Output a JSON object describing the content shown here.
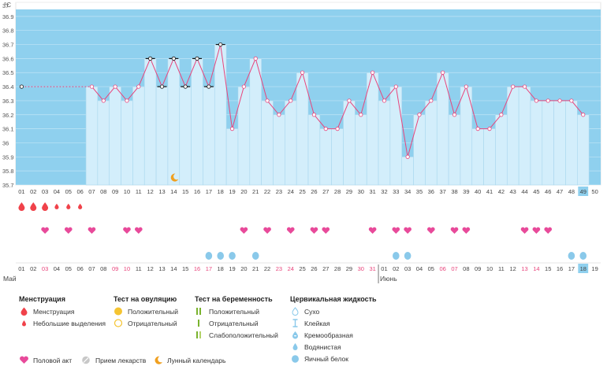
{
  "chart_data": {
    "type": "line",
    "unit_label": "°C",
    "y_ticks": [
      "37",
      "36.9",
      "36.8",
      "36.7",
      "36.6",
      "36.5",
      "36.4",
      "36.3",
      "36.2",
      "36.1",
      "36",
      "35.9",
      "35.8",
      "35.7"
    ],
    "ylim": [
      35.7,
      37.0
    ],
    "cycle_days": [
      "01",
      "02",
      "03",
      "04",
      "05",
      "06",
      "07",
      "08",
      "09",
      "10",
      "11",
      "12",
      "13",
      "14",
      "15",
      "16",
      "17",
      "18",
      "19",
      "20",
      "21",
      "22",
      "23",
      "24",
      "25",
      "26",
      "27",
      "28",
      "29",
      "30",
      "31",
      "32",
      "33",
      "34",
      "35",
      "36",
      "37",
      "38",
      "39",
      "40",
      "41",
      "42",
      "43",
      "44",
      "45",
      "46",
      "47",
      "48",
      "49",
      "50"
    ],
    "current_cycle_day": "49",
    "temperatures": [
      36.4,
      null,
      null,
      null,
      null,
      null,
      36.4,
      36.3,
      36.4,
      36.3,
      36.4,
      36.6,
      36.4,
      36.6,
      36.4,
      36.6,
      36.4,
      36.7,
      36.1,
      36.4,
      36.6,
      36.3,
      36.2,
      36.3,
      36.5,
      36.2,
      36.1,
      36.1,
      36.3,
      36.2,
      36.5,
      36.3,
      36.4,
      35.9,
      36.2,
      36.3,
      36.5,
      36.2,
      36.4,
      36.1,
      36.1,
      36.2,
      36.4,
      36.4,
      36.3,
      36.3,
      36.3,
      36.3,
      36.2,
      null
    ],
    "temperature_marker_style": [
      "plain",
      "none",
      "none",
      "none",
      "none",
      "none",
      "plain",
      "plain",
      "plain",
      "plain",
      "plain",
      "bar",
      "bar",
      "bar",
      "bar",
      "bar",
      "bar",
      "bar",
      "plain",
      "plain",
      "plain",
      "plain",
      "plain",
      "plain",
      "plain",
      "plain",
      "plain",
      "plain",
      "plain",
      "plain",
      "plain",
      "plain",
      "plain",
      "plain",
      "plain",
      "plain",
      "plain",
      "plain",
      "plain",
      "plain",
      "plain",
      "plain",
      "plain",
      "plain",
      "plain",
      "plain",
      "plain",
      "plain",
      "plain",
      "none"
    ],
    "lunar_calendar_day_index": 13,
    "menstruation": [
      "heavy",
      "heavy",
      "heavy",
      "light",
      "light",
      "light",
      "",
      "",
      "",
      "",
      "",
      "",
      "",
      "",
      "",
      "",
      "",
      "",
      "",
      "",
      "",
      "",
      "",
      "",
      "",
      "",
      "",
      "",
      "",
      "",
      "",
      "",
      "",
      "",
      "",
      "",
      "",
      "",
      "",
      "",
      "",
      "",
      "",
      "",
      "",
      "",
      "",
      "",
      "",
      ""
    ],
    "intercourse": [
      0,
      0,
      1,
      0,
      1,
      0,
      1,
      0,
      0,
      1,
      1,
      0,
      0,
      0,
      0,
      0,
      0,
      0,
      0,
      1,
      0,
      1,
      0,
      1,
      0,
      1,
      1,
      0,
      0,
      0,
      1,
      0,
      1,
      1,
      0,
      1,
      0,
      1,
      1,
      0,
      0,
      0,
      0,
      1,
      1,
      1,
      0,
      0,
      0,
      0
    ],
    "cervical_fluid": [
      "",
      "",
      "",
      "",
      "",
      "",
      "",
      "",
      "",
      "",
      "",
      "",
      "",
      "",
      "",
      "",
      "egg_white",
      "egg_white",
      "egg_white",
      "",
      "egg_white",
      "",
      "",
      "",
      "",
      "",
      "",
      "",
      "",
      "",
      "",
      "",
      "egg_white",
      "egg_white",
      "",
      "",
      "",
      "",
      "",
      "",
      "",
      "",
      "",
      "",
      "",
      "",
      "",
      "egg_white",
      "egg_white",
      ""
    ],
    "calendar_dates": [
      "01",
      "02",
      "03",
      "04",
      "05",
      "06",
      "07",
      "08",
      "09",
      "10",
      "11",
      "12",
      "13",
      "14",
      "15",
      "16",
      "17",
      "18",
      "19",
      "20",
      "21",
      "22",
      "23",
      "24",
      "25",
      "26",
      "27",
      "28",
      "29",
      "30",
      "31",
      "01",
      "02",
      "03",
      "04",
      "05",
      "06",
      "07",
      "08",
      "09",
      "10",
      "11",
      "12",
      "13",
      "14",
      "15",
      "16",
      "17",
      "18",
      "19"
    ],
    "weekend_date_indices": [
      2,
      8,
      9,
      15,
      16,
      22,
      23,
      29,
      30,
      36,
      37,
      43,
      44
    ],
    "today_date_index": 48,
    "month_labels": [
      {
        "index": 0,
        "label": "Май"
      },
      {
        "index": 31,
        "label": "Июнь"
      }
    ]
  },
  "legend": {
    "menstruation": {
      "title": "Менструация",
      "items": [
        "Менструация",
        "Небольшие выделения"
      ]
    },
    "ovulation_test": {
      "title": "Тест на овуляцию",
      "items": [
        "Положительный",
        "Отрицательный"
      ]
    },
    "pregnancy_test": {
      "title": "Тест на беременность",
      "items": [
        "Положительный",
        "Отрицательный",
        "Слабоположительный"
      ]
    },
    "cervical_fluid": {
      "title": "Цервикальная жидкость",
      "items": [
        "Сухо",
        "Клейкая",
        "Кремообразная",
        "Водянистая",
        "Яичный белок"
      ]
    },
    "other": {
      "intercourse": "Половой акт",
      "medication": "Прием лекарств",
      "lunar": "Лунный календарь"
    }
  },
  "colors": {
    "high_zone": "#8fd0ee",
    "bar_fill": "#d3eefb",
    "bar_stroke": "#a9d7ee",
    "temp_line": "#e8457c",
    "drop_red": "#f0424a",
    "heart": "#e84a9a",
    "egg_white": "#8ac9ea",
    "weekend": "#e8457c",
    "today_bg": "#8fd0ee",
    "lunar": "#f0a020",
    "ovulation_pos": "#f5c431",
    "preg_pos": "#7ab32e",
    "preg_weak": "#b3d26a"
  }
}
